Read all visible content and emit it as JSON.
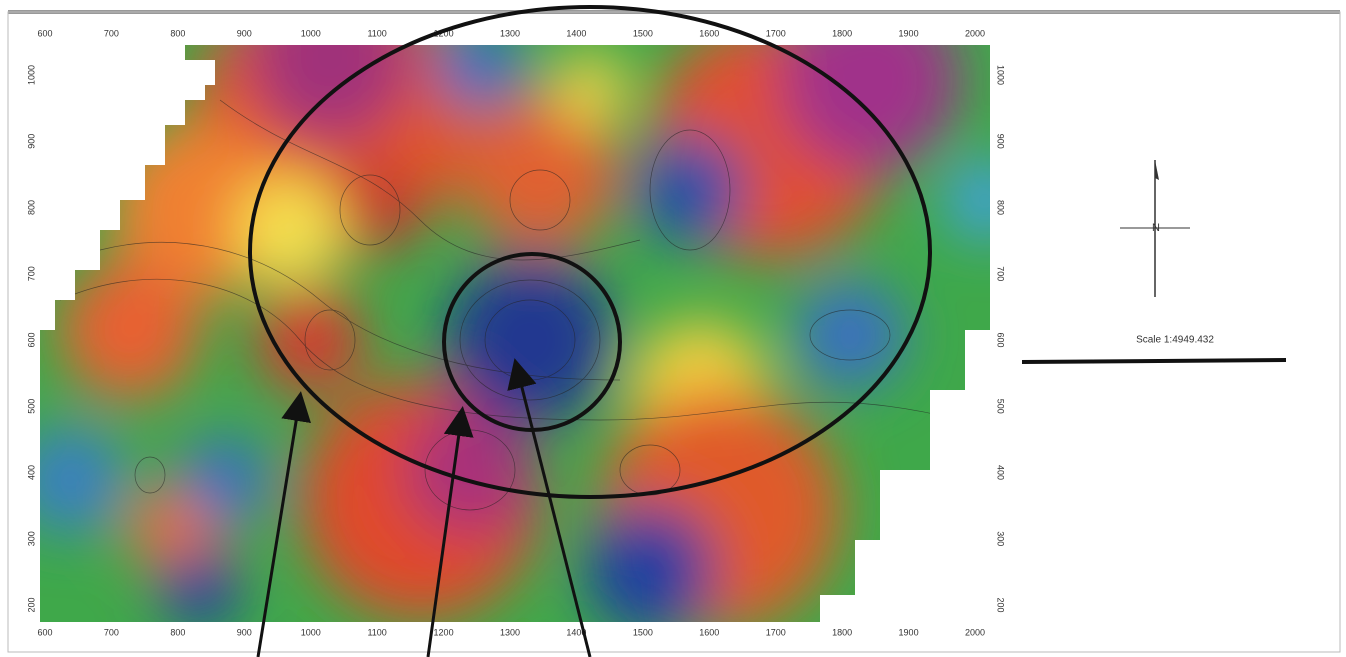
{
  "map": {
    "x_ticks": [
      600,
      700,
      800,
      900,
      1000,
      1100,
      1200,
      1300,
      1400,
      1500,
      1600,
      1700,
      1800,
      1900,
      2000
    ],
    "y_ticks": [
      1000,
      900,
      800,
      700,
      600,
      500,
      400,
      300,
      200
    ]
  },
  "north_label": "N",
  "scale_label": "Scale 1:4949.432"
}
